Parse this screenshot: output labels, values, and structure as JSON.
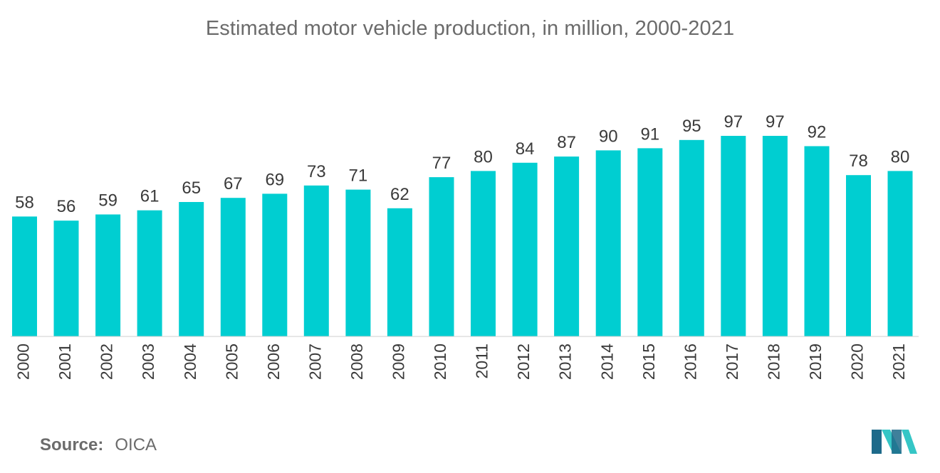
{
  "chart_data": {
    "type": "bar",
    "title": "Estimated motor vehicle production, in million, 2000-2021",
    "xlabel": "",
    "ylabel": "",
    "categories": [
      "2000",
      "2001",
      "2002",
      "2003",
      "2004",
      "2005",
      "2006",
      "2007",
      "2008",
      "2009",
      "2010",
      "2011",
      "2012",
      "2013",
      "2014",
      "2015",
      "2016",
      "2017",
      "2018",
      "2019",
      "2020",
      "2021"
    ],
    "values": [
      58,
      56,
      59,
      61,
      65,
      67,
      69,
      73,
      71,
      62,
      77,
      80,
      84,
      87,
      90,
      91,
      95,
      97,
      97,
      92,
      78,
      80
    ],
    "ylim": [
      0,
      97
    ],
    "grid": false,
    "legend": "none",
    "bar_color": "#00ced1",
    "data_labels": true
  },
  "source": {
    "label": "Source:",
    "value": "OICA"
  },
  "colors": {
    "text": "#6b6b6b",
    "label_text": "#3a3a3a",
    "bar": "#00ced1",
    "axis": "#555555",
    "logo_dark": "#1d6a8a",
    "logo_light": "#35c6c6"
  },
  "logo": {
    "icon": "mordor-intelligence-logo"
  }
}
